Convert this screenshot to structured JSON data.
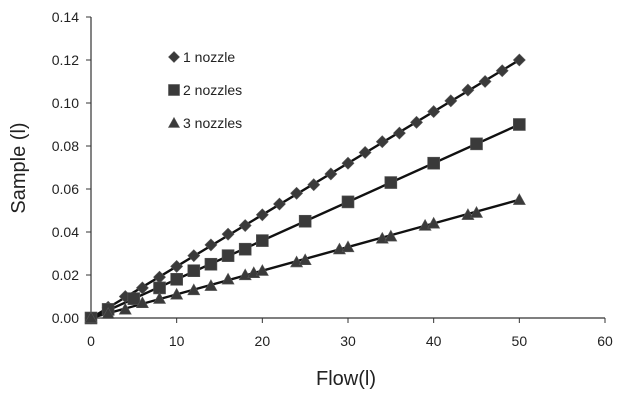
{
  "chart_data": {
    "type": "scatter",
    "xlabel": "Flow(l)",
    "ylabel": "Sample (l)",
    "xlim": [
      0,
      60
    ],
    "ylim": [
      0,
      0.14
    ],
    "xticks": [
      "0",
      "10",
      "20",
      "30",
      "40",
      "50",
      "60"
    ],
    "yticks": [
      "0.00",
      "0.02",
      "0.04",
      "0.06",
      "0.08",
      "0.10",
      "0.12",
      "0.14"
    ],
    "grid": false,
    "legend_position": "top-left",
    "series": [
      {
        "name": "1 nozzle",
        "marker": "diamond",
        "color": "#222222",
        "trendline": [
          [
            0,
            0.0
          ],
          [
            50,
            0.12
          ]
        ],
        "points": [
          [
            0,
            0.0
          ],
          [
            2,
            0.005
          ],
          [
            4,
            0.01
          ],
          [
            6,
            0.014
          ],
          [
            8,
            0.019
          ],
          [
            10,
            0.024
          ],
          [
            12,
            0.029
          ],
          [
            14,
            0.034
          ],
          [
            16,
            0.039
          ],
          [
            18,
            0.043
          ],
          [
            20,
            0.048
          ],
          [
            22,
            0.053
          ],
          [
            24,
            0.058
          ],
          [
            26,
            0.062
          ],
          [
            28,
            0.067
          ],
          [
            30,
            0.072
          ],
          [
            32,
            0.077
          ],
          [
            34,
            0.082
          ],
          [
            36,
            0.086
          ],
          [
            38,
            0.091
          ],
          [
            40,
            0.096
          ],
          [
            42,
            0.101
          ],
          [
            44,
            0.106
          ],
          [
            46,
            0.11
          ],
          [
            48,
            0.115
          ],
          [
            50,
            0.12
          ]
        ]
      },
      {
        "name": "2 nozzles",
        "marker": "square",
        "color": "#222222",
        "trendline": [
          [
            0,
            0.0
          ],
          [
            50,
            0.09
          ]
        ],
        "points": [
          [
            0,
            0.0
          ],
          [
            2,
            0.004
          ],
          [
            5,
            0.009
          ],
          [
            8,
            0.014
          ],
          [
            10,
            0.018
          ],
          [
            12,
            0.022
          ],
          [
            14,
            0.025
          ],
          [
            16,
            0.029
          ],
          [
            18,
            0.032
          ],
          [
            20,
            0.036
          ],
          [
            25,
            0.045
          ],
          [
            30,
            0.054
          ],
          [
            35,
            0.063
          ],
          [
            40,
            0.072
          ],
          [
            45,
            0.081
          ],
          [
            50,
            0.09
          ]
        ]
      },
      {
        "name": "3 nozzles",
        "marker": "triangle",
        "color": "#222222",
        "trendline": [
          [
            0,
            0.0
          ],
          [
            50,
            0.055
          ]
        ],
        "points": [
          [
            0,
            0.0
          ],
          [
            2,
            0.002
          ],
          [
            4,
            0.004
          ],
          [
            6,
            0.007
          ],
          [
            8,
            0.009
          ],
          [
            10,
            0.011
          ],
          [
            12,
            0.013
          ],
          [
            14,
            0.015
          ],
          [
            16,
            0.018
          ],
          [
            18,
            0.02
          ],
          [
            19,
            0.021
          ],
          [
            20,
            0.022
          ],
          [
            24,
            0.026
          ],
          [
            25,
            0.027
          ],
          [
            29,
            0.032
          ],
          [
            30,
            0.033
          ],
          [
            34,
            0.037
          ],
          [
            35,
            0.038
          ],
          [
            39,
            0.043
          ],
          [
            40,
            0.044
          ],
          [
            44,
            0.048
          ],
          [
            45,
            0.049
          ],
          [
            50,
            0.055
          ]
        ]
      }
    ]
  }
}
